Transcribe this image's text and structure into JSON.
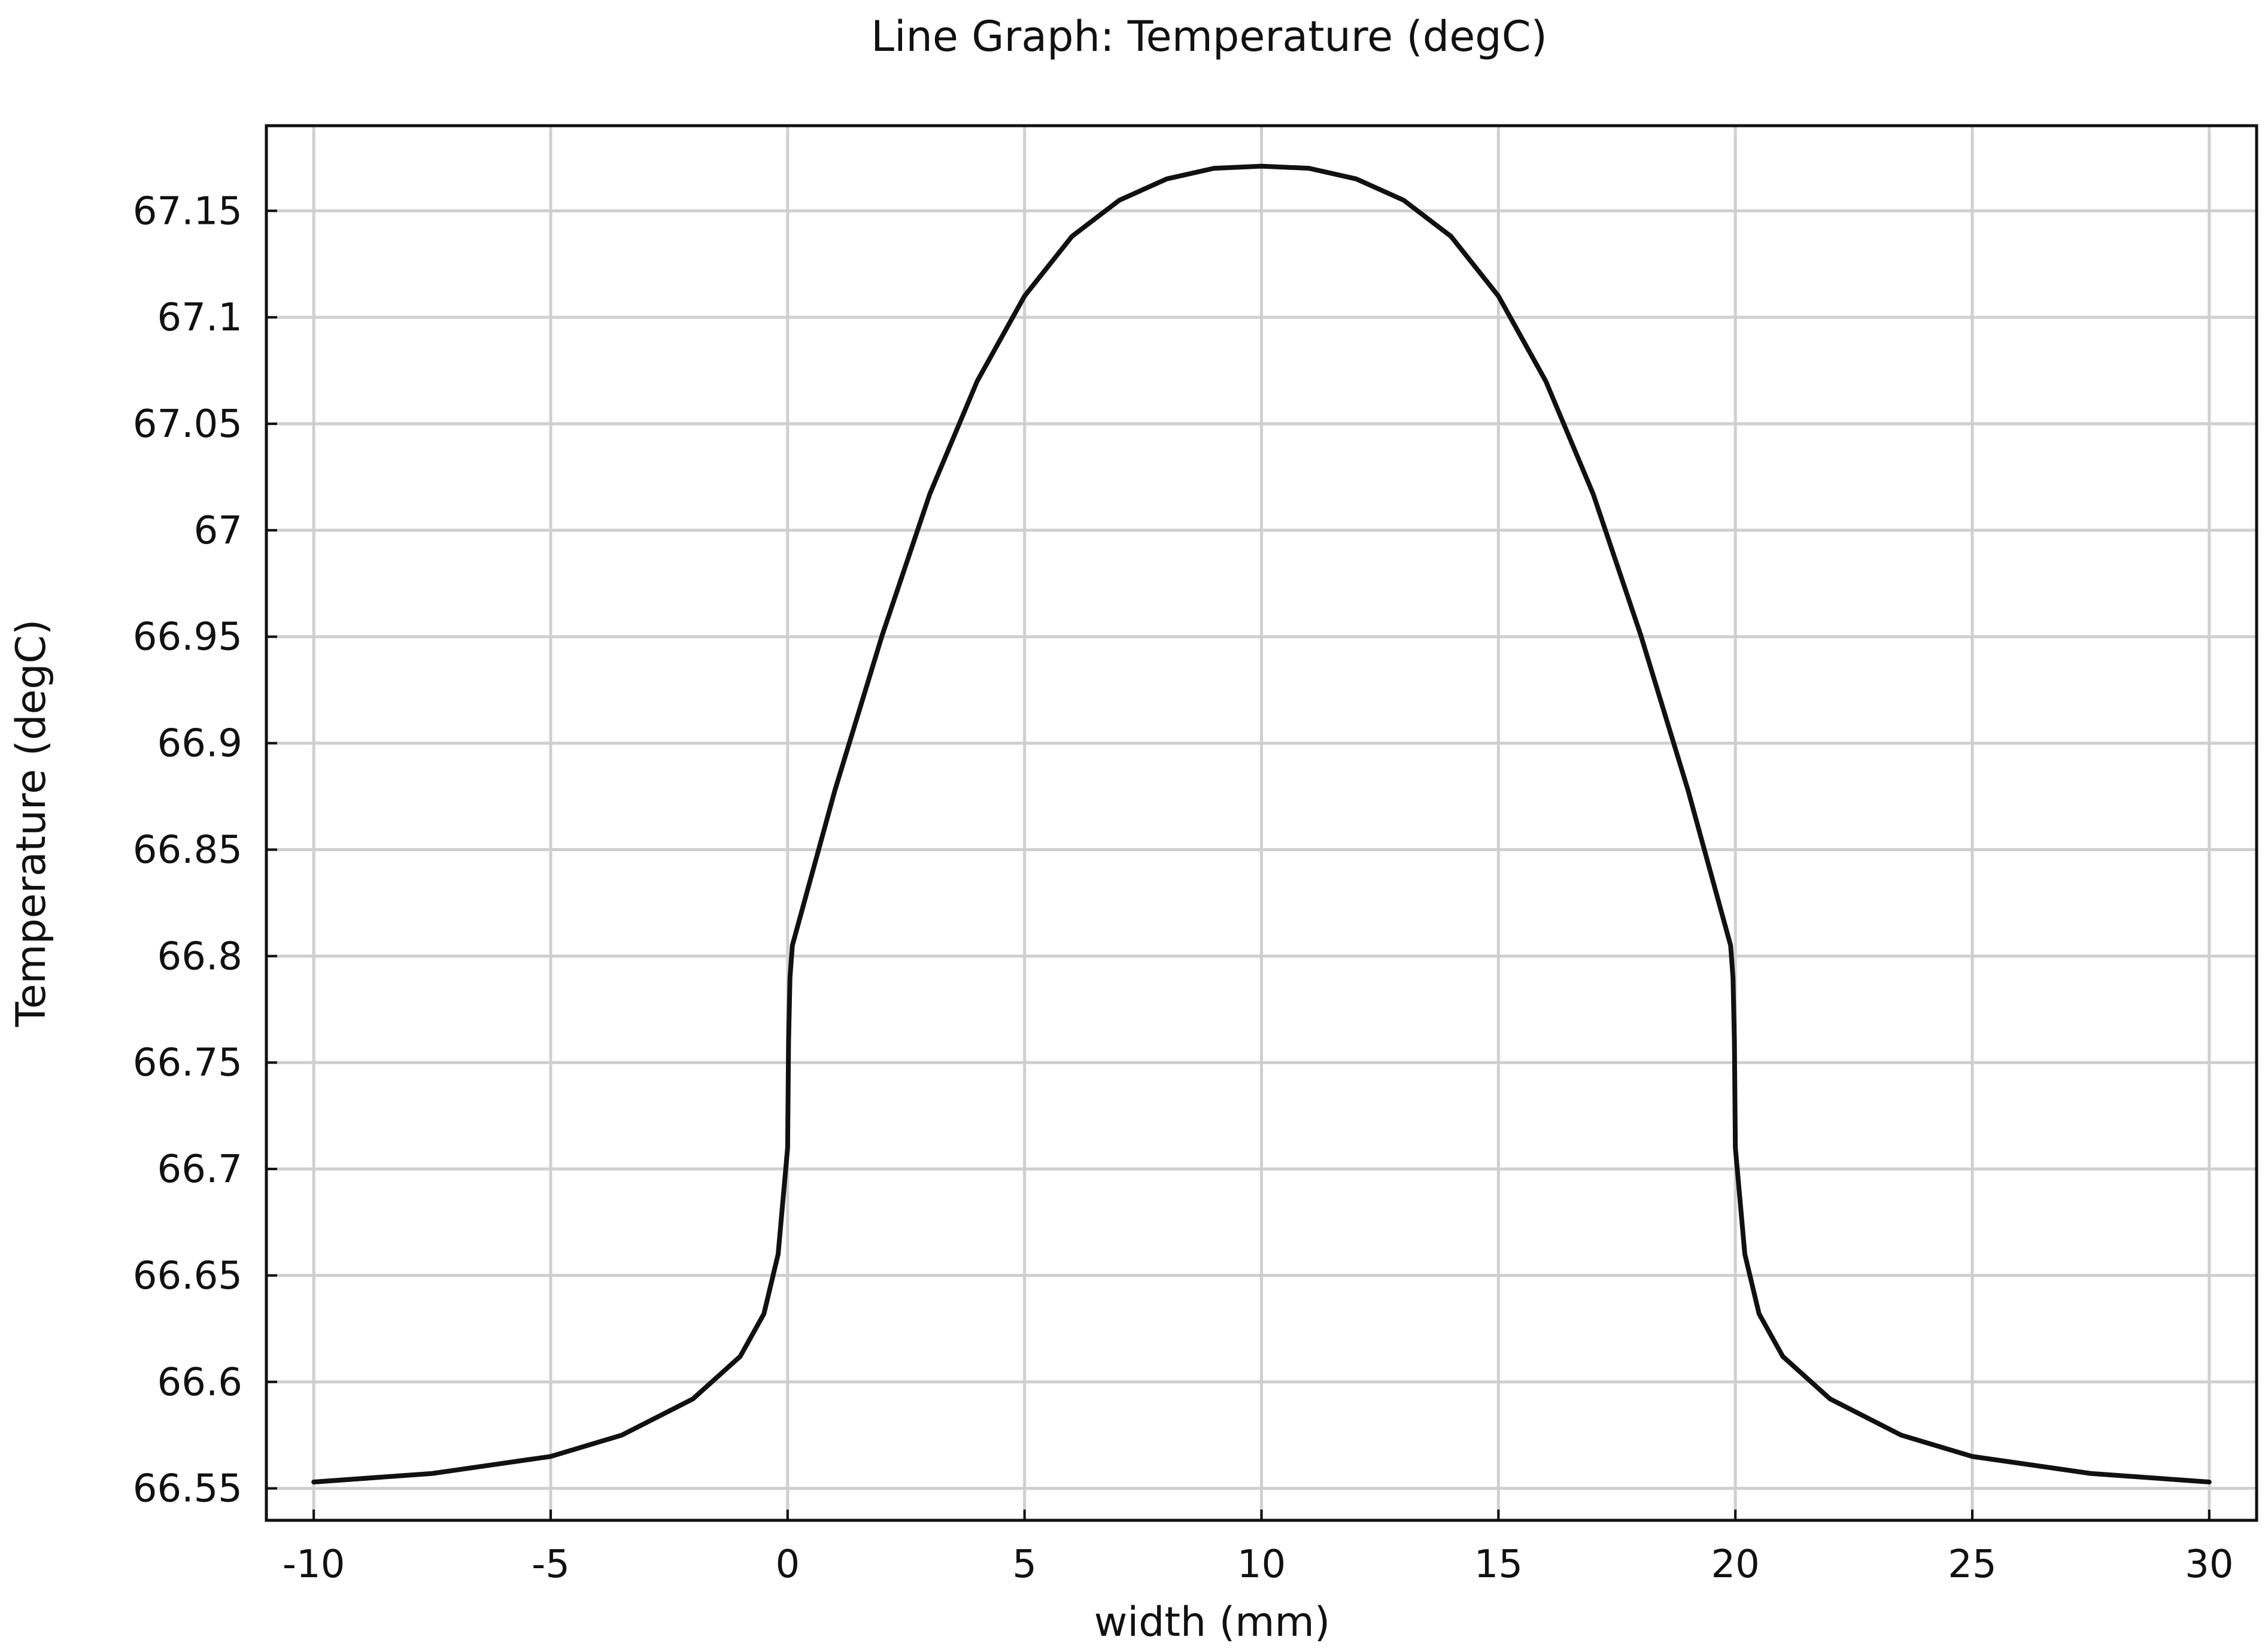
{
  "chart_data": {
    "type": "line",
    "title": "Line Graph: Temperature (degC)",
    "xlabel": "width (mm)",
    "ylabel": "Temperature (degC)",
    "xlim": [
      -11,
      31
    ],
    "ylim": [
      66.535,
      67.19
    ],
    "grid": true,
    "x_ticks": [
      -10,
      -5,
      0,
      5,
      10,
      15,
      20,
      25,
      30
    ],
    "x_tick_labels": [
      "-10",
      "-5",
      "0",
      "5",
      "10",
      "15",
      "20",
      "25",
      "30"
    ],
    "y_ticks": [
      66.55,
      66.6,
      66.65,
      66.7,
      66.75,
      66.8,
      66.85,
      66.9,
      66.95,
      67,
      67.05,
      67.1,
      67.15
    ],
    "y_tick_labels": [
      "66.55",
      "66.6",
      "66.65",
      "66.7",
      "66.75",
      "66.8",
      "66.85",
      "66.9",
      "66.95",
      "67",
      "67.05",
      "67.1",
      "67.15"
    ],
    "line_color": "#111111",
    "grid_color": "#cfcfcf",
    "series": [
      {
        "x": [
          -10,
          -7.5,
          -5,
          -3.5,
          -2,
          -1,
          -0.5,
          -0.2,
          0,
          0.02,
          0.05,
          0.1,
          1,
          2,
          3,
          4,
          5,
          6,
          7,
          8,
          9,
          10,
          11,
          12,
          13,
          14,
          15,
          16,
          17,
          18,
          19,
          19.9,
          19.95,
          19.98,
          20,
          20.2,
          20.5,
          21,
          22,
          23.5,
          25,
          27.5,
          30
        ],
        "y": [
          66.553,
          66.557,
          66.565,
          66.575,
          66.592,
          66.612,
          66.632,
          66.66,
          66.71,
          66.76,
          66.79,
          66.805,
          66.878,
          66.951,
          67.017,
          67.07,
          67.11,
          67.138,
          67.155,
          67.165,
          67.17,
          67.171,
          67.17,
          67.165,
          67.155,
          67.138,
          67.11,
          67.07,
          67.017,
          66.951,
          66.878,
          66.805,
          66.79,
          66.76,
          66.71,
          66.66,
          66.632,
          66.612,
          66.592,
          66.575,
          66.565,
          66.557,
          66.553
        ]
      }
    ]
  }
}
